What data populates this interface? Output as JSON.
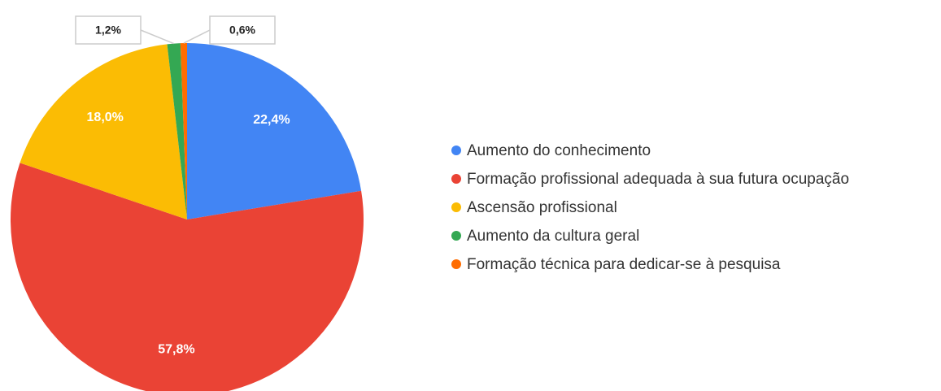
{
  "chart_data": {
    "type": "pie",
    "categories": [
      "Aumento do conhecimento",
      "Formação profissional adequada à sua futura ocupação",
      "Ascensão profissional",
      "Aumento da cultura geral",
      "Formação técnica para dedicar-se à pesquisa"
    ],
    "values": [
      22.4,
      57.8,
      18.0,
      1.2,
      0.6
    ],
    "value_labels": [
      "22,4%",
      "57,8%",
      "18,0%",
      "1,2%",
      "0,6%"
    ],
    "colors": [
      "#4285f4",
      "#ea4335",
      "#fbbc04",
      "#34a853",
      "#ff6d01"
    ],
    "legend": "right"
  }
}
